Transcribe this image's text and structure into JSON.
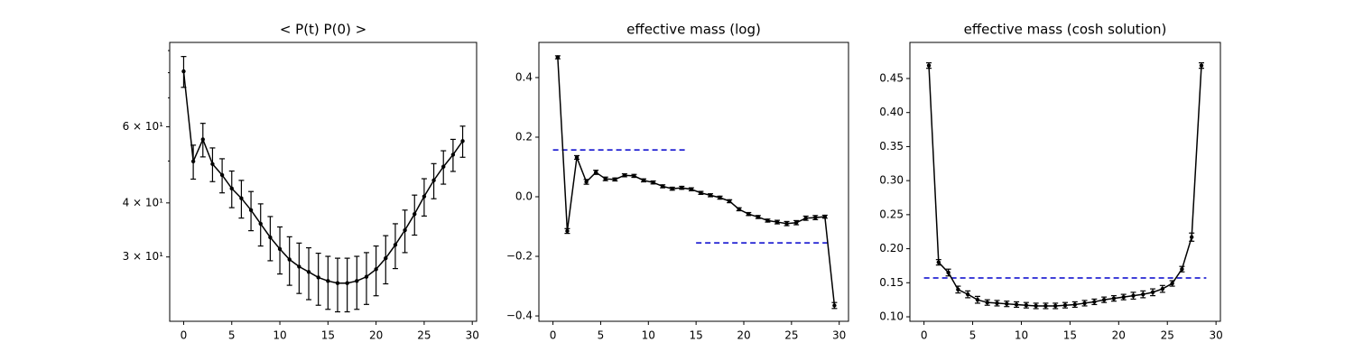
{
  "chart_data": [
    {
      "type": "line",
      "title": "< P(t)  P(0) >",
      "yscale": "log",
      "color": "#000000",
      "x": [
        0,
        1,
        2,
        3,
        4,
        5,
        6,
        7,
        8,
        9,
        10,
        11,
        12,
        13,
        14,
        15,
        16,
        17,
        18,
        19,
        20,
        21,
        22,
        23,
        24,
        25,
        26,
        27,
        28,
        29
      ],
      "values": [
        80.6,
        49.9,
        56.1,
        49.2,
        46.4,
        43.2,
        41.0,
        38.5,
        35.8,
        33.3,
        31.3,
        29.6,
        28.5,
        27.7,
        26.9,
        26.4,
        26.1,
        26.1,
        26.4,
        27.0,
        28.1,
        29.8,
        32.0,
        34.6,
        37.7,
        41.4,
        45.1,
        48.5,
        51.7,
        55.6
      ],
      "errors": [
        6.6,
        4.5,
        5.0,
        4.4,
        4.2,
        4.2,
        4.1,
        4.0,
        4.0,
        3.9,
        3.9,
        3.8,
        3.8,
        3.8,
        3.7,
        3.7,
        3.7,
        3.7,
        3.7,
        3.7,
        3.7,
        3.8,
        3.8,
        3.9,
        4.0,
        4.1,
        4.2,
        4.3,
        4.4,
        4.6
      ],
      "xlim": [
        -1.45,
        30.45
      ],
      "ylim": [
        21.3,
        94.0
      ],
      "xticks": [
        0,
        5,
        10,
        15,
        20,
        25,
        30
      ],
      "yticks": [
        {
          "value": 30,
          "label": "3 × 10¹"
        },
        {
          "value": 40,
          "label": "4 × 10¹"
        },
        {
          "value": 60,
          "label": "6 × 10¹"
        }
      ],
      "yminorticks": [
        50,
        70,
        80,
        90
      ]
    },
    {
      "type": "line",
      "title": "effective mass (log)",
      "color": "#000000",
      "x": [
        0.5,
        1.5,
        2.5,
        3.5,
        4.5,
        5.5,
        6.5,
        7.5,
        8.5,
        9.5,
        10.5,
        11.5,
        12.5,
        13.5,
        14.5,
        15.5,
        16.5,
        17.5,
        18.5,
        19.5,
        20.5,
        21.5,
        22.5,
        23.5,
        24.5,
        25.5,
        26.5,
        27.5,
        28.5,
        29.5
      ],
      "values": [
        0.468,
        -0.115,
        0.132,
        0.05,
        0.082,
        0.06,
        0.058,
        0.072,
        0.07,
        0.055,
        0.048,
        0.035,
        0.027,
        0.03,
        0.025,
        0.013,
        0.005,
        -0.003,
        -0.015,
        -0.042,
        -0.058,
        -0.068,
        -0.08,
        -0.085,
        -0.09,
        -0.087,
        -0.072,
        -0.07,
        -0.067,
        -0.365
      ],
      "errors": [
        0.005,
        0.008,
        0.006,
        0.008,
        0.007,
        0.006,
        0.005,
        0.005,
        0.005,
        0.005,
        0.005,
        0.005,
        0.005,
        0.005,
        0.005,
        0.005,
        0.005,
        0.005,
        0.005,
        0.005,
        0.005,
        0.005,
        0.005,
        0.006,
        0.007,
        0.007,
        0.007,
        0.007,
        0.005,
        0.01
      ],
      "xlim": [
        -1.475,
        30.975
      ],
      "ylim": [
        -0.418,
        0.518
      ],
      "xticks": [
        0,
        5,
        10,
        15,
        20,
        25,
        30
      ],
      "yticks": [
        {
          "value": -0.4,
          "label": "−0.4"
        },
        {
          "value": -0.2,
          "label": "−0.2"
        },
        {
          "value": 0,
          "label": "0.0"
        },
        0.2,
        0.4
      ],
      "hlines": [
        {
          "y": 0.157,
          "xmin": 0,
          "xmax": 14,
          "color": "#0000cc"
        },
        {
          "y": -0.155,
          "xmin": 15,
          "xmax": 29,
          "color": "#0000cc"
        }
      ]
    },
    {
      "type": "line",
      "title": "effective mass (cosh solution)",
      "color": "#000000",
      "x": [
        0.5,
        1.5,
        2.5,
        3.5,
        4.5,
        5.5,
        6.5,
        7.5,
        8.5,
        9.5,
        10.5,
        11.5,
        12.5,
        13.5,
        14.5,
        15.5,
        16.5,
        17.5,
        18.5,
        19.5,
        20.5,
        21.5,
        22.5,
        23.5,
        24.5,
        25.5,
        26.5,
        27.5,
        28.5
      ],
      "values": [
        0.469,
        0.18,
        0.165,
        0.14,
        0.133,
        0.125,
        0.121,
        0.12,
        0.119,
        0.118,
        0.117,
        0.116,
        0.116,
        0.116,
        0.117,
        0.118,
        0.12,
        0.122,
        0.125,
        0.127,
        0.129,
        0.131,
        0.133,
        0.136,
        0.141,
        0.149,
        0.17,
        0.217,
        0.469
      ],
      "errors": [
        0.004,
        0.004,
        0.005,
        0.005,
        0.005,
        0.005,
        0.004,
        0.004,
        0.004,
        0.004,
        0.004,
        0.004,
        0.004,
        0.004,
        0.004,
        0.004,
        0.004,
        0.004,
        0.004,
        0.004,
        0.004,
        0.005,
        0.005,
        0.005,
        0.005,
        0.004,
        0.004,
        0.006,
        0.004
      ],
      "xlim": [
        -1.45,
        30.45
      ],
      "ylim": [
        0.0934,
        0.503
      ],
      "xticks": [
        0,
        5,
        10,
        15,
        20,
        25,
        30
      ],
      "yticks": [
        {
          "value": 0.1,
          "label": "0.10"
        },
        0.15,
        {
          "value": 0.2,
          "label": "0.20"
        },
        0.25,
        {
          "value": 0.3,
          "label": "0.30"
        },
        0.35,
        {
          "value": 0.4,
          "label": "0.40"
        },
        0.45
      ],
      "hlines": [
        {
          "y": 0.157,
          "xmin": 0,
          "xmax": 29,
          "color": "#0000cc"
        }
      ]
    }
  ]
}
